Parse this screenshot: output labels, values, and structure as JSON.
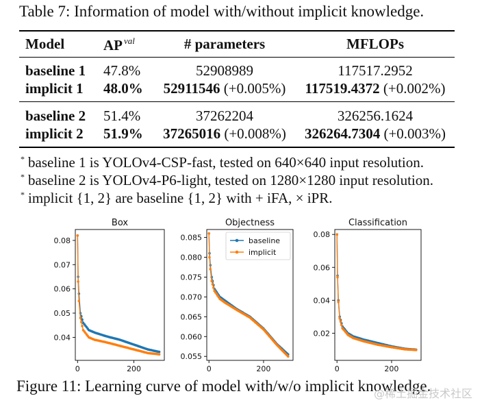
{
  "table": {
    "caption": "Table 7: Information of model with/without implicit knowledge.",
    "headers": {
      "model": "Model",
      "ap": "AP",
      "ap_sup": "val",
      "params": "# parameters",
      "mflops": "MFLOPs"
    },
    "rows": [
      {
        "model": "baseline 1",
        "ap": "47.8%",
        "params": "52908989",
        "params_delta": "",
        "mflops": "117517.2952",
        "mflops_delta": ""
      },
      {
        "model": "implicit 1",
        "ap": "48.0%",
        "params": "52911546",
        "params_delta": " (+0.005%)",
        "mflops": "117519.4372",
        "mflops_delta": " (+0.002%)"
      },
      {
        "model": "baseline 2",
        "ap": "51.4%",
        "params": "37262204",
        "params_delta": "",
        "mflops": "326256.1624",
        "mflops_delta": ""
      },
      {
        "model": "implicit 2",
        "ap": "51.9%",
        "params": "37265016",
        "params_delta": " (+0.008%)",
        "mflops": "326264.7304",
        "mflops_delta": " (+0.003%)"
      }
    ],
    "notes": [
      "baseline 1 is YOLOv4-CSP-fast, tested on 640×640 input resolution.",
      "baseline 2 is YOLOv4-P6-light, tested on 1280×1280 input resolution.",
      "implicit {1, 2} are baseline {1, 2} with + iFA, × iPR."
    ],
    "note_marker": "*"
  },
  "figure_caption": "Figure 11: Learning curve of model with/w/o implicit knowledge.",
  "watermark": "@稀土掘金技术社区",
  "chart_data": [
    {
      "type": "line",
      "title": "Box",
      "xlabel": "",
      "ylabel": "",
      "xlim": [
        -8,
        308
      ],
      "ylim": [
        0.0305,
        0.0845
      ],
      "xticks": [
        0,
        200
      ],
      "yticks": [
        0.04,
        0.05,
        0.06,
        0.07,
        0.08
      ],
      "ytick_labels": [
        "0.04",
        "0.05",
        "0.06",
        "0.07",
        "0.08"
      ],
      "legend": null,
      "series": [
        {
          "name": "baseline",
          "color": "#1f77b4",
          "x": [
            0,
            2,
            5,
            10,
            20,
            40,
            60,
            100,
            150,
            200,
            250,
            290
          ],
          "y": [
            0.082,
            0.065,
            0.058,
            0.05,
            0.046,
            0.043,
            0.042,
            0.0405,
            0.039,
            0.037,
            0.035,
            0.034
          ]
        },
        {
          "name": "implicit",
          "color": "#ff7f0e",
          "x": [
            0,
            2,
            5,
            10,
            20,
            40,
            60,
            100,
            150,
            200,
            250,
            290
          ],
          "y": [
            0.082,
            0.063,
            0.055,
            0.048,
            0.043,
            0.04,
            0.039,
            0.038,
            0.0365,
            0.035,
            0.0335,
            0.033
          ]
        }
      ]
    },
    {
      "type": "line",
      "title": "Objectness",
      "xlabel": "",
      "ylabel": "",
      "xlim": [
        -8,
        308
      ],
      "ylim": [
        0.054,
        0.087
      ],
      "xticks": [
        0,
        200
      ],
      "yticks": [
        0.055,
        0.06,
        0.065,
        0.07,
        0.075,
        0.08,
        0.085
      ],
      "ytick_labels": [
        "0.055",
        "0.060",
        "0.065",
        "0.070",
        "0.075",
        "0.080",
        "0.085"
      ],
      "legend": "upper-right",
      "series": [
        {
          "name": "baseline",
          "color": "#1f77b4",
          "x": [
            0,
            2,
            5,
            10,
            20,
            40,
            60,
            100,
            150,
            200,
            250,
            290
          ],
          "y": [
            0.086,
            0.081,
            0.078,
            0.075,
            0.072,
            0.07,
            0.069,
            0.067,
            0.065,
            0.062,
            0.058,
            0.0555
          ]
        },
        {
          "name": "implicit",
          "color": "#ff7f0e",
          "x": [
            0,
            2,
            5,
            10,
            20,
            40,
            60,
            100,
            150,
            200,
            250,
            290
          ],
          "y": [
            0.086,
            0.08,
            0.077,
            0.074,
            0.0715,
            0.0695,
            0.0685,
            0.0668,
            0.0648,
            0.0618,
            0.0578,
            0.055
          ]
        }
      ]
    },
    {
      "type": "line",
      "title": "Classification",
      "xlabel": "",
      "ylabel": "",
      "xlim": [
        -8,
        308
      ],
      "ylim": [
        0.0035,
        0.083
      ],
      "xticks": [
        0,
        200
      ],
      "yticks": [
        0.02,
        0.04,
        0.06,
        0.08
      ],
      "ytick_labels": [
        "0.02",
        "0.04",
        "0.06",
        "0.08"
      ],
      "legend": null,
      "series": [
        {
          "name": "baseline",
          "color": "#1f77b4",
          "x": [
            0,
            2,
            5,
            10,
            20,
            40,
            60,
            100,
            150,
            200,
            250,
            290
          ],
          "y": [
            0.08,
            0.055,
            0.04,
            0.03,
            0.024,
            0.02,
            0.018,
            0.016,
            0.014,
            0.012,
            0.0105,
            0.01
          ]
        },
        {
          "name": "implicit",
          "color": "#ff7f0e",
          "x": [
            0,
            2,
            5,
            10,
            20,
            40,
            60,
            100,
            150,
            200,
            250,
            290
          ],
          "y": [
            0.08,
            0.054,
            0.039,
            0.029,
            0.023,
            0.019,
            0.017,
            0.015,
            0.013,
            0.0115,
            0.0102,
            0.0098
          ]
        }
      ]
    }
  ]
}
